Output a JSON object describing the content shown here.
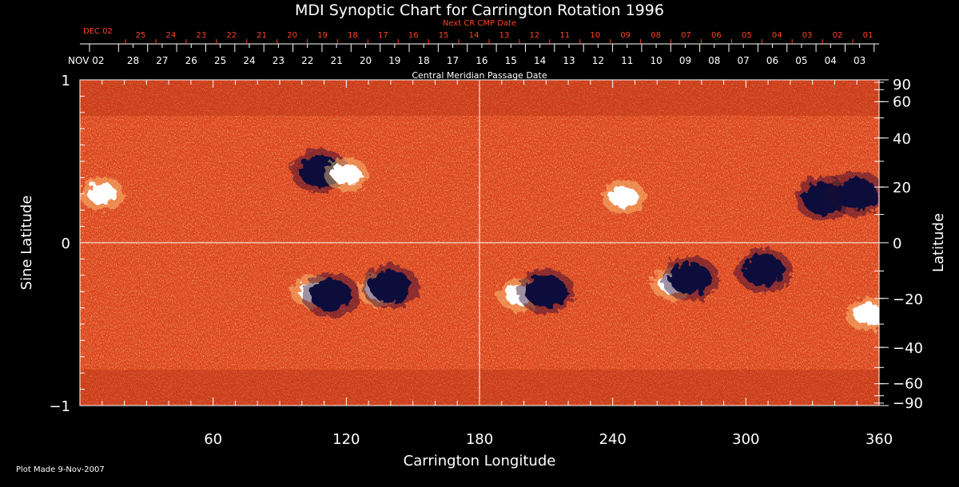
{
  "chart_data": {
    "type": "heatmap",
    "title": "MDI Synoptic Chart for Carrington Rotation 1996",
    "xlabel": "Carrington Longitude",
    "ylabel_left": "Sine Latitude",
    "ylabel_right": "Latitude",
    "xlim": [
      0,
      360
    ],
    "ylim": [
      -1,
      1
    ],
    "x_ticks": [
      60,
      120,
      180,
      240,
      300,
      360
    ],
    "y_ticks_left": [
      {
        "value": 1,
        "label": "1"
      },
      {
        "value": 0,
        "label": "0"
      },
      {
        "value": -1,
        "label": "−1"
      }
    ],
    "y_ticks_right": [
      {
        "value": 90,
        "label": "90"
      },
      {
        "value": 60,
        "label": "60"
      },
      {
        "value": 40,
        "label": "40"
      },
      {
        "value": 20,
        "label": "20"
      },
      {
        "value": 0,
        "label": "0"
      },
      {
        "value": -20,
        "label": "−20"
      },
      {
        "value": -40,
        "label": "−40"
      },
      {
        "value": -60,
        "label": "−60"
      },
      {
        "value": -90,
        "label": "−90"
      }
    ],
    "cmp_axis": {
      "label": "Central Meridian Passage Date",
      "start_label": "NOV 02",
      "day_labels": [
        "28",
        "27",
        "26",
        "25",
        "24",
        "23",
        "22",
        "21",
        "20",
        "19",
        "18",
        "17",
        "16",
        "15",
        "14",
        "13",
        "12",
        "11",
        "10",
        "09",
        "08",
        "07",
        "06",
        "05",
        "04",
        "03"
      ]
    },
    "next_cr_axis": {
      "label": "Next CR CMP Date",
      "start_label": "DEC 02",
      "day_labels": [
        "25",
        "24",
        "23",
        "22",
        "21",
        "20",
        "19",
        "18",
        "17",
        "16",
        "15",
        "14",
        "13",
        "12",
        "11",
        "10",
        "09",
        "08",
        "07",
        "06",
        "05",
        "04",
        "03",
        "02",
        "01"
      ]
    },
    "active_regions": [
      {
        "lon": 108,
        "sinlat": 0.44,
        "polarity": "negative"
      },
      {
        "lon": 120,
        "sinlat": 0.42,
        "polarity": "positive"
      },
      {
        "lon": 105,
        "sinlat": -0.3,
        "polarity": "positive"
      },
      {
        "lon": 113,
        "sinlat": -0.32,
        "polarity": "negative"
      },
      {
        "lon": 135,
        "sinlat": -0.29,
        "polarity": "positive"
      },
      {
        "lon": 140,
        "sinlat": -0.27,
        "polarity": "negative"
      },
      {
        "lon": 198,
        "sinlat": -0.32,
        "polarity": "positive"
      },
      {
        "lon": 210,
        "sinlat": -0.3,
        "polarity": "negative"
      },
      {
        "lon": 267,
        "sinlat": -0.25,
        "polarity": "positive"
      },
      {
        "lon": 275,
        "sinlat": -0.22,
        "polarity": "negative"
      },
      {
        "lon": 308,
        "sinlat": -0.17,
        "polarity": "negative"
      },
      {
        "lon": 335,
        "sinlat": 0.27,
        "polarity": "negative"
      },
      {
        "lon": 350,
        "sinlat": 0.3,
        "polarity": "negative"
      },
      {
        "lon": 245,
        "sinlat": 0.28,
        "polarity": "positive"
      },
      {
        "lon": 10,
        "sinlat": 0.3,
        "polarity": "positive"
      },
      {
        "lon": 355,
        "sinlat": -0.44,
        "polarity": "positive"
      }
    ],
    "footer": "Plot Made  9-Nov-2007",
    "colors": {
      "background": "#000000",
      "field_base": "#e0441a",
      "positive": "#ffffff",
      "negative": "#0a0a3a",
      "next_cr_text": "#ff4422",
      "axis": "#ffffff"
    }
  }
}
